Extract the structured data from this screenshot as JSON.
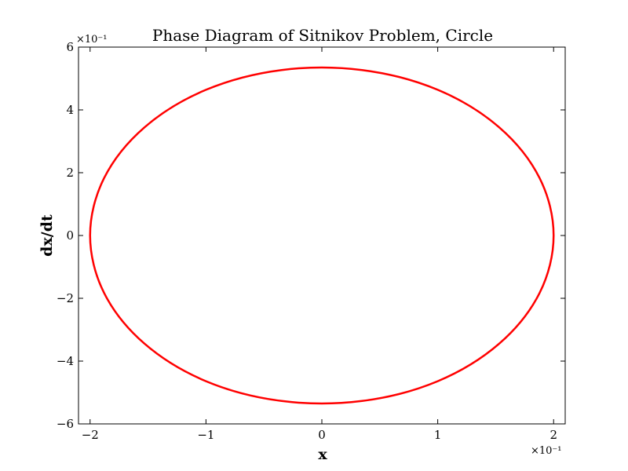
{
  "chart_data": {
    "type": "line",
    "title": "Phase Diagram of Sitnikov Problem, Circle",
    "xlabel": "x",
    "ylabel": "dx/dt",
    "x_offset_label": "×10⁻¹",
    "y_offset_label": "×10⁻¹",
    "xlim": [
      -2.1,
      2.1
    ],
    "ylim": [
      -6,
      6
    ],
    "x_ticks": [
      -2,
      -1,
      0,
      1,
      2
    ],
    "y_ticks": [
      -6,
      -4,
      -2,
      0,
      2,
      4,
      6
    ],
    "x_tick_labels": [
      "−2",
      "−1",
      "0",
      "1",
      "2"
    ],
    "y_tick_labels": [
      "−6",
      "−4",
      "−2",
      "0",
      "2",
      "4",
      "6"
    ],
    "grid": false,
    "series": [
      {
        "color": "#ff0000",
        "shape": "closed orbit",
        "x": [
          2.0,
          1.879,
          1.532,
          1.0,
          0.347,
          -0.347,
          -1.0,
          -1.532,
          -1.879,
          -2.0,
          -1.879,
          -1.532,
          -1.0,
          -0.347,
          0.347,
          1.0,
          1.532,
          1.879,
          2.0
        ],
        "y": [
          0.0,
          1.83,
          3.44,
          4.64,
          5.27,
          5.27,
          4.64,
          3.44,
          1.83,
          0.0,
          -1.83,
          -3.44,
          -4.64,
          -5.27,
          -5.27,
          -4.64,
          -3.44,
          -1.83,
          0.0
        ]
      }
    ]
  }
}
